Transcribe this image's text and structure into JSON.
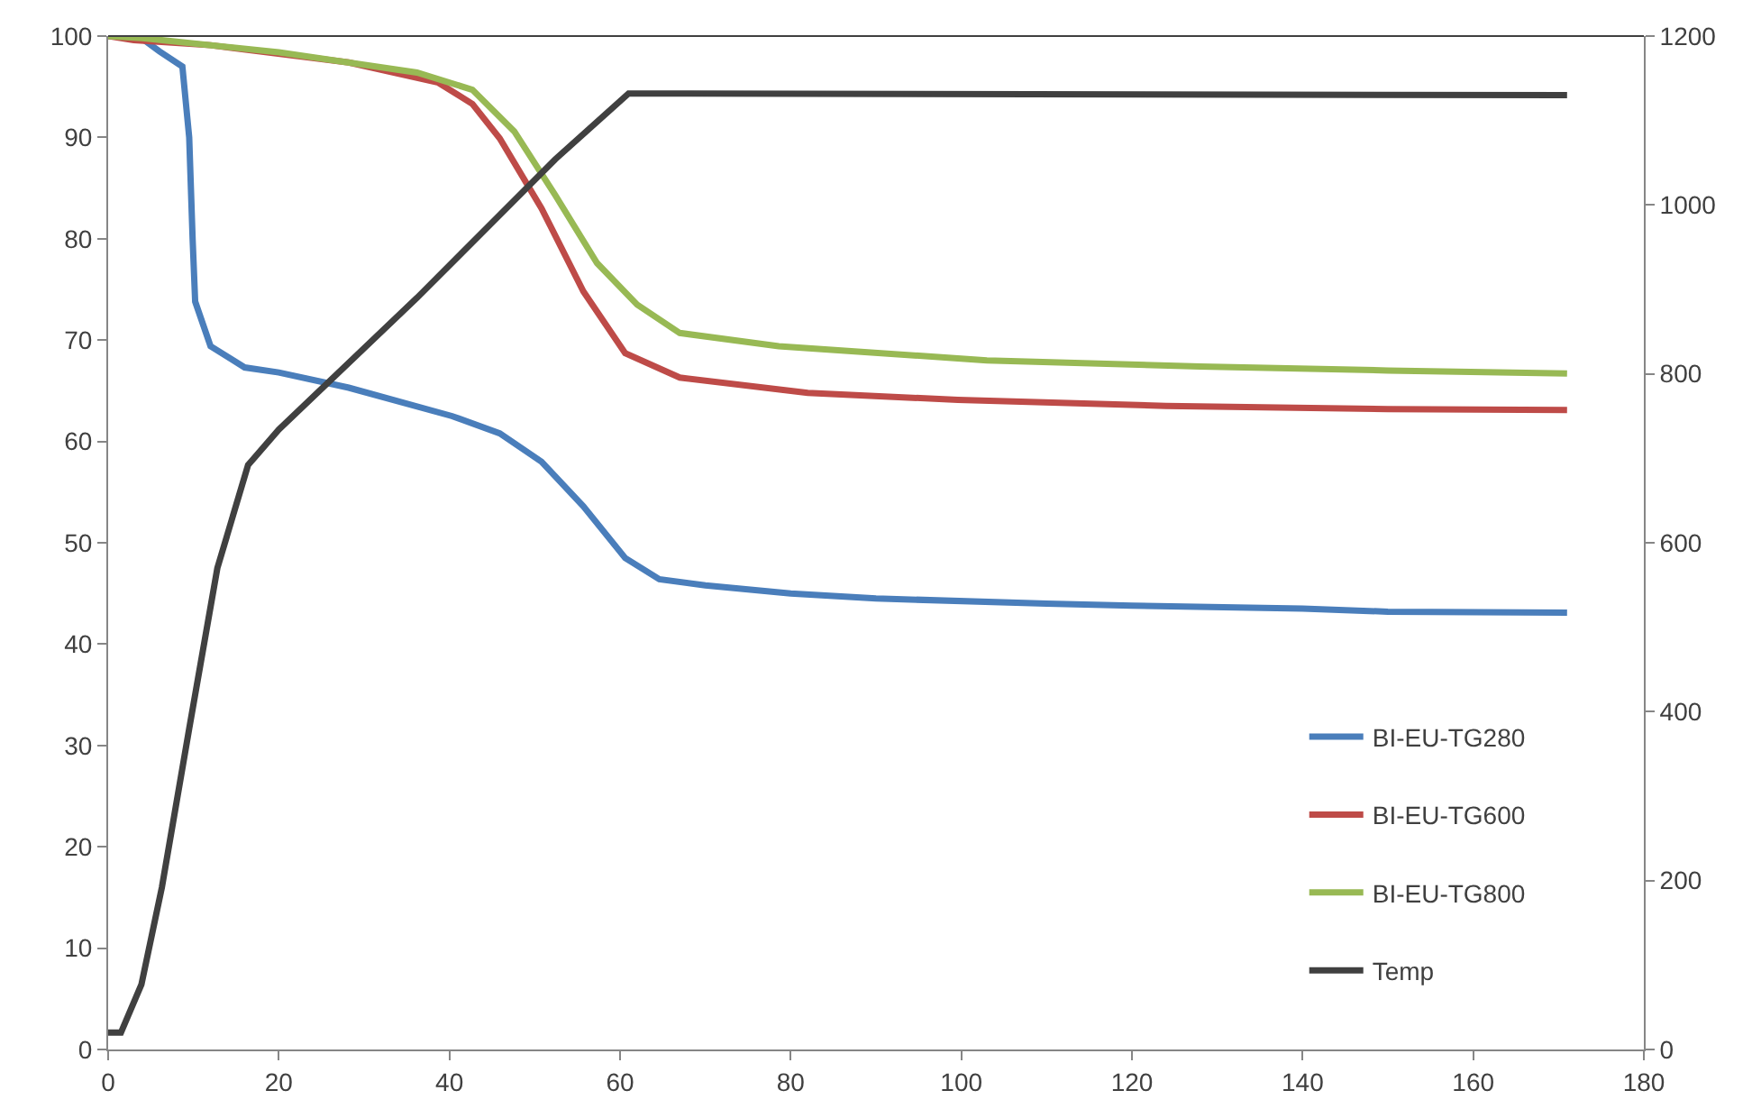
{
  "chart_data": {
    "type": "line",
    "xlim": [
      0,
      180
    ],
    "xticks": [
      0,
      20,
      40,
      60,
      80,
      100,
      120,
      140,
      160,
      180
    ],
    "ylim": [
      0,
      100
    ],
    "yticks": [
      0,
      10,
      20,
      30,
      40,
      50,
      60,
      70,
      80,
      90,
      100
    ],
    "y2lim": [
      0,
      1200
    ],
    "y2ticks": [
      0,
      200,
      400,
      600,
      800,
      1000,
      1200
    ],
    "legend": "bottom right",
    "line_style": "solid",
    "marker": "none",
    "series": [
      {
        "name": "BI-EU-TG280",
        "color": "#4a7ebb",
        "x": [
          0,
          3.9,
          6,
          8.7,
          9.5,
          9.9,
          10.2,
          12,
          16,
          20,
          28.2,
          40.3,
          45.9,
          50.8,
          55.7,
          60.6,
          64.6,
          70,
          80,
          90,
          110,
          120,
          140,
          150,
          171
        ],
        "values": [
          100,
          99.8,
          98.5,
          97,
          90,
          80,
          73.8,
          69.4,
          67.3,
          66.8,
          65.3,
          62.5,
          60.8,
          58,
          53.6,
          48.5,
          46.4,
          45.8,
          45,
          44.5,
          44,
          43.8,
          43.5,
          43.2,
          43.1
        ]
      },
      {
        "name": "BI-EU-TG600",
        "color": "#be4b48",
        "x": [
          0,
          3,
          12,
          28.2,
          38.7,
          42.7,
          45.9,
          50.8,
          55.7,
          60.6,
          67,
          82,
          99.6,
          124,
          150,
          171
        ],
        "values": [
          100,
          99.6,
          99.1,
          97.4,
          95.4,
          93.3,
          89.9,
          83,
          74.8,
          68.7,
          66.3,
          64.8,
          64.1,
          63.5,
          63.2,
          63.1
        ]
      },
      {
        "name": "BI-EU-TG800",
        "color": "#98b954",
        "x": [
          0,
          4,
          20,
          36.2,
          42.7,
          47.6,
          52.4,
          57.3,
          62,
          67,
          78.6,
          103,
          128,
          150,
          171
        ],
        "values": [
          100,
          99.8,
          98.4,
          96.4,
          94.7,
          90.6,
          84.3,
          77.6,
          73.5,
          70.7,
          69.4,
          68,
          67.4,
          67,
          66.7
        ]
      },
      {
        "name": "Temp",
        "color": "#404040",
        "axis": "y2",
        "x": [
          0,
          1.5,
          3.9,
          6.3,
          9.5,
          12.8,
          16.4,
          20,
          36.2,
          52.4,
          61,
          64,
          171
        ],
        "values": [
          20,
          20,
          77,
          192,
          380,
          570,
          692,
          734,
          890,
          1054,
          1132,
          1132,
          1130
        ]
      }
    ]
  }
}
